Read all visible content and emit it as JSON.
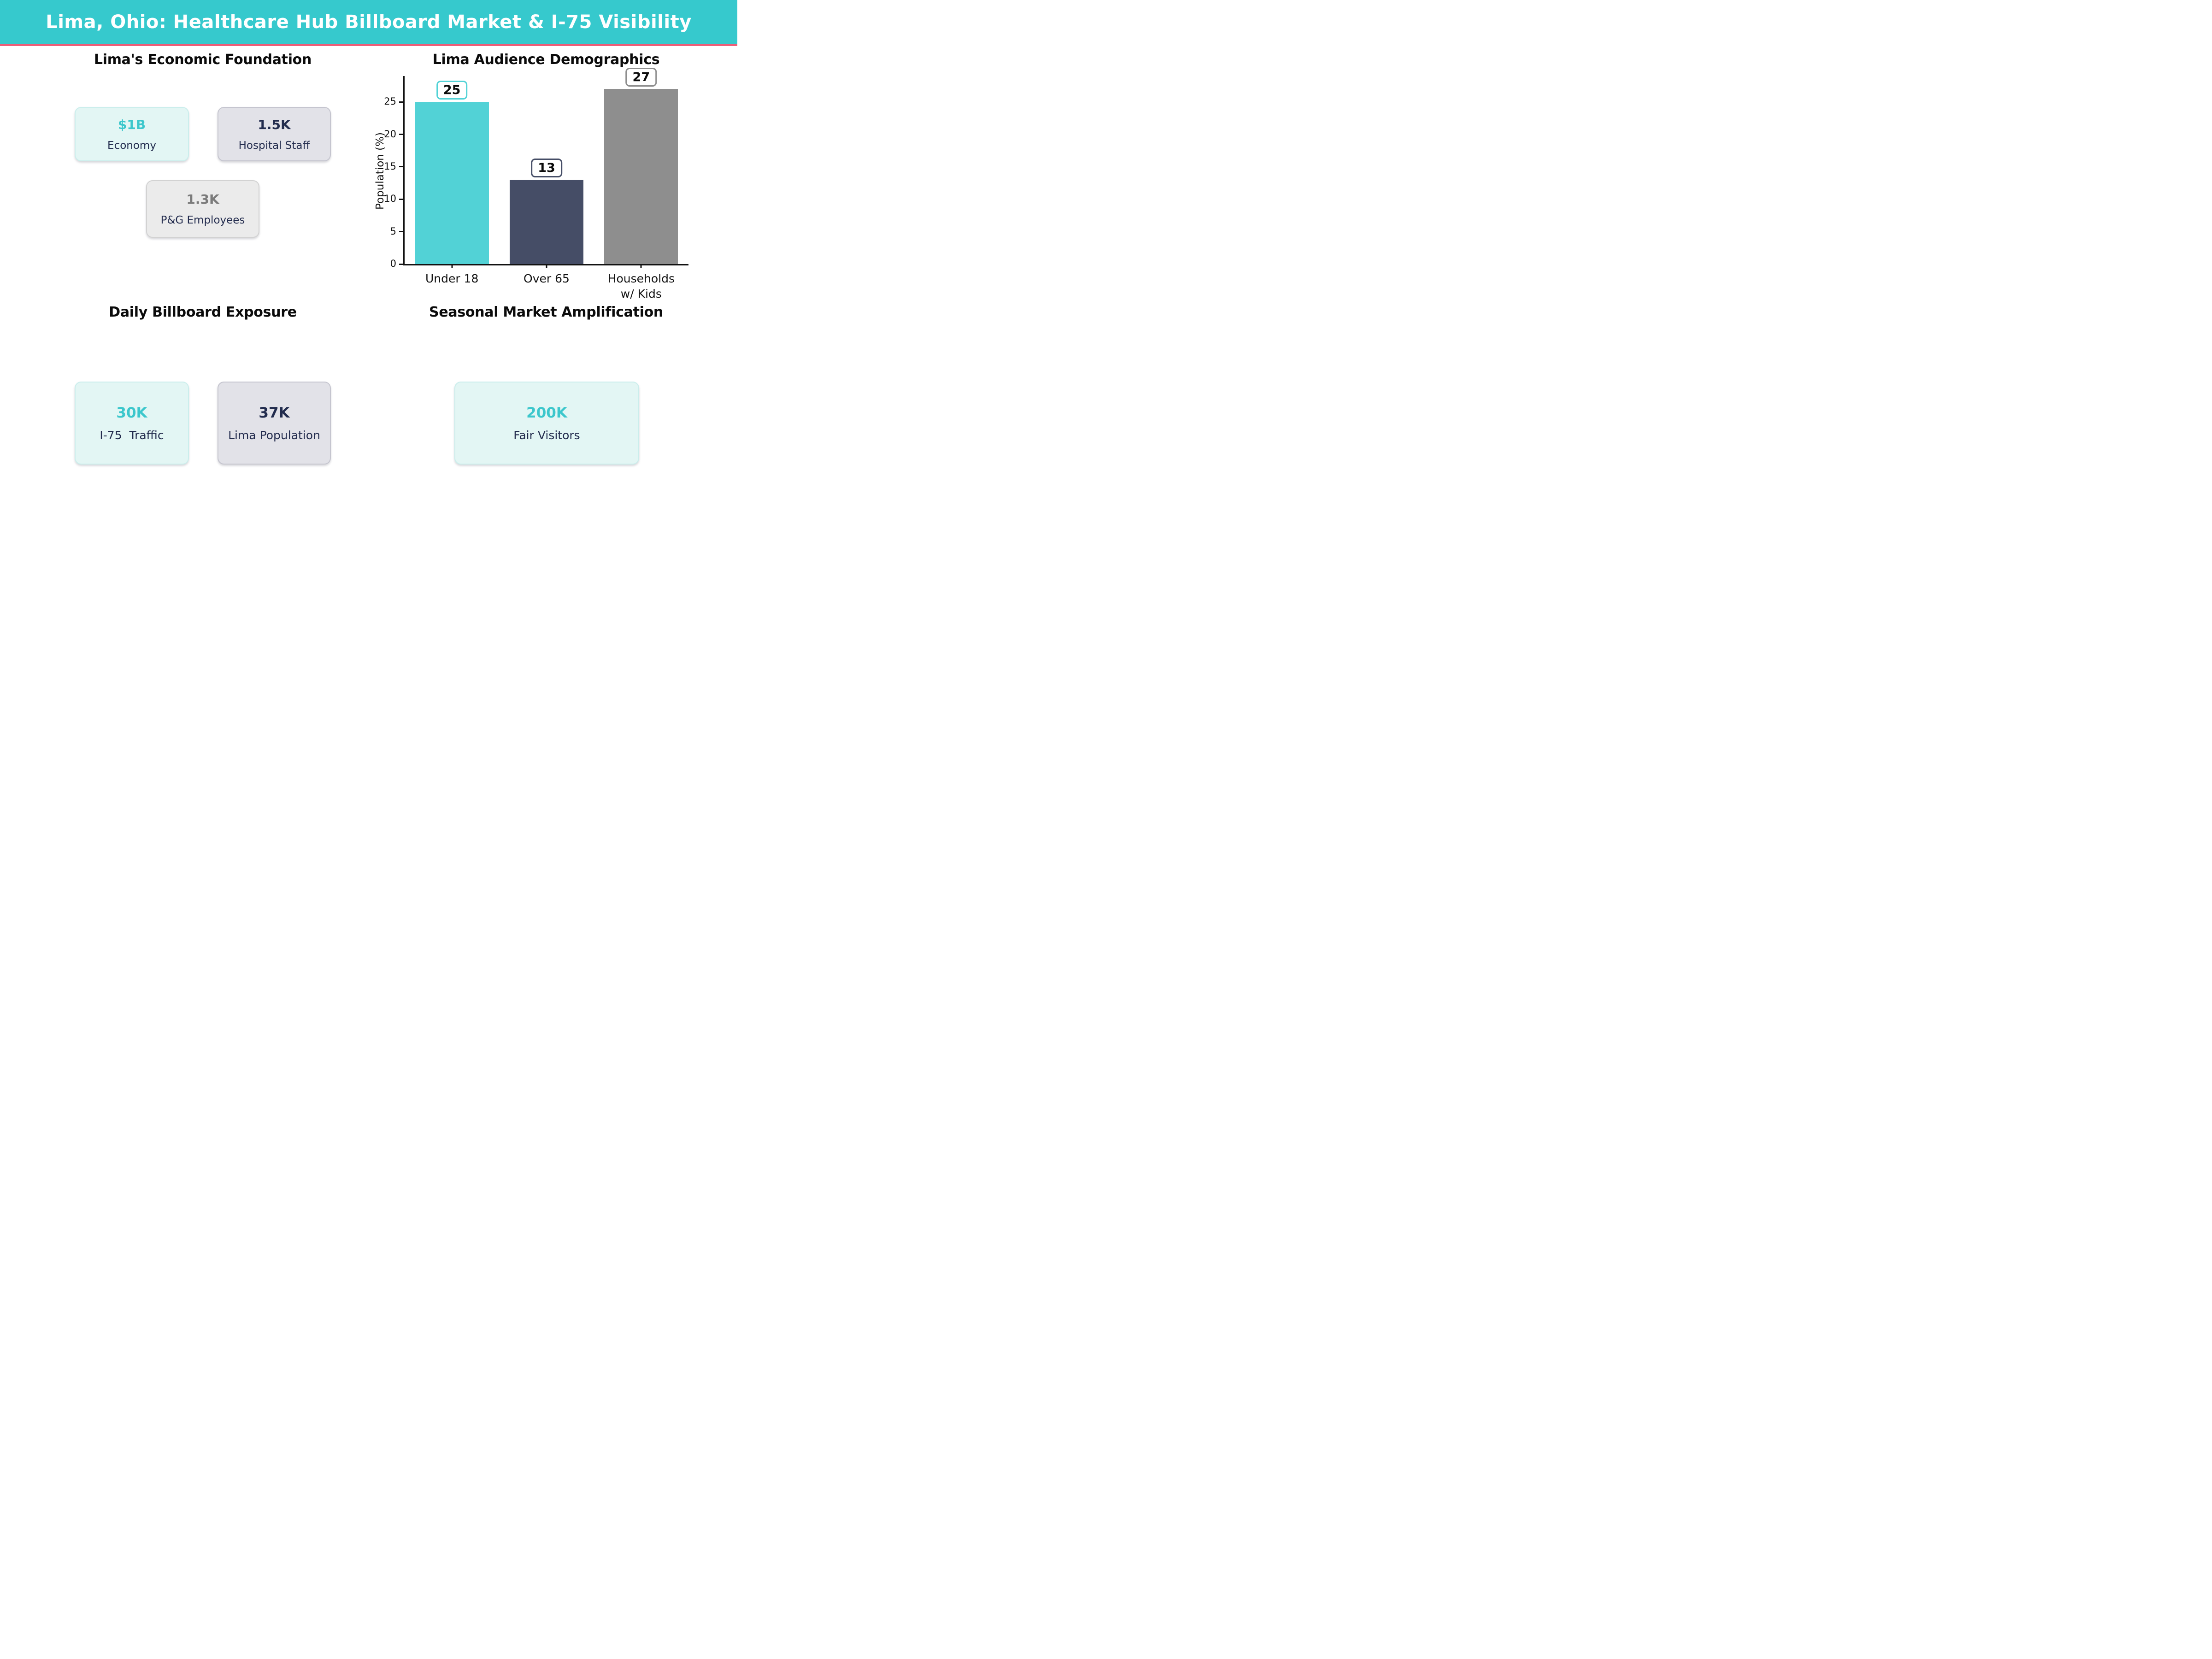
{
  "header": {
    "title": "Lima, Ohio: Healthcare Hub Billboard Market & I-75 Visibility",
    "bg_color": "#36c9cd",
    "accent_line_color": "#ee5e78"
  },
  "sections": {
    "economic": {
      "title": "Lima's Economic Foundation",
      "cards": [
        {
          "value": "$1B",
          "label": "Economy",
          "theme": "mint",
          "value_color": "#3cc7cc"
        },
        {
          "value": "1.5K",
          "label": "Hospital Staff",
          "theme": "lavender",
          "value_color": "#222c4e"
        },
        {
          "value": "1.3K",
          "label": "P&G Employees",
          "theme": "gray",
          "value_color": "#7b7b7b"
        }
      ]
    },
    "demographics": {
      "title": "Lima Audience Demographics"
    },
    "exposure": {
      "title": "Daily Billboard Exposure",
      "cards": [
        {
          "value": "30K",
          "label": "I-75  Traffic",
          "theme": "mint",
          "value_color": "#3cc7cc"
        },
        {
          "value": "37K",
          "label": "Lima Population",
          "theme": "lavender",
          "value_color": "#222c4e"
        }
      ]
    },
    "seasonal": {
      "title": "Seasonal Market Amplification",
      "cards": [
        {
          "value": "200K",
          "label": "Fair Visitors",
          "theme": "mint",
          "value_color": "#3cc7cc"
        }
      ]
    }
  },
  "chart_data": {
    "type": "bar",
    "title": "Lima Audience Demographics",
    "categories": [
      "Under 18",
      "Over 65",
      "Households\nw/ Kids"
    ],
    "values": [
      25,
      13,
      27
    ],
    "value_labels": [
      "25",
      "13",
      "27"
    ],
    "bar_colors": [
      "#52d2d6",
      "#454d66",
      "#8e8e8e"
    ],
    "xlabel": "",
    "ylabel": "Population (%)",
    "yticks": [
      0,
      5,
      10,
      15,
      20,
      25
    ],
    "ylim": [
      0,
      29
    ],
    "grid": false,
    "legend": "none"
  },
  "palette": {
    "header_teal": "#36c9cd",
    "accent_pink": "#ee5e78",
    "mint_card_bg": "#e3f6f4",
    "lavender_card_bg": "#e2e2e8",
    "gray_card_bg": "#ebebeb",
    "navy_text": "#222c4e",
    "teal_text": "#3cc7cc",
    "gray_text": "#7b7b7b",
    "bar_teal": "#52d2d6",
    "bar_navy": "#454d66",
    "bar_gray": "#8e8e8e"
  }
}
